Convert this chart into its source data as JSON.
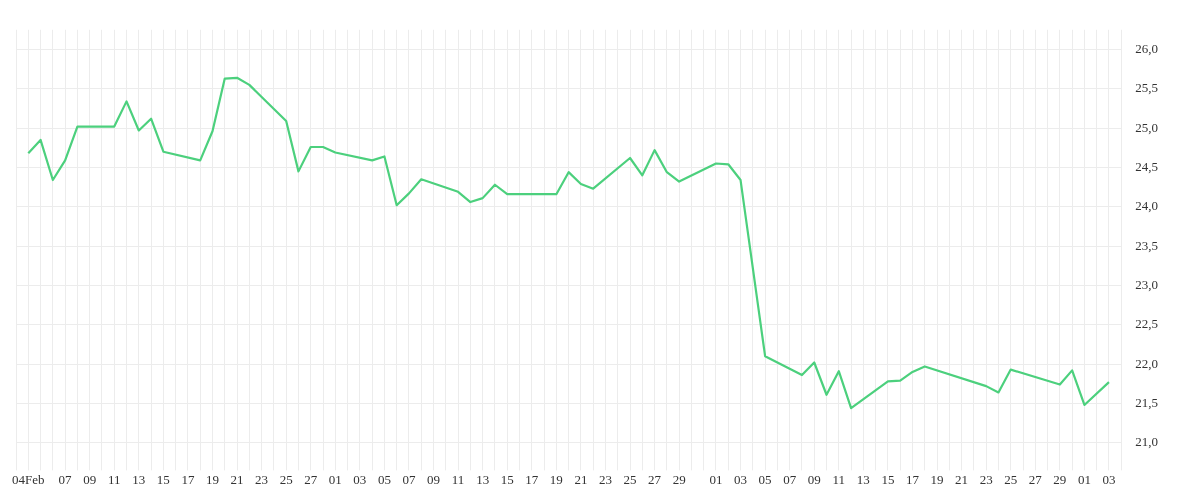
{
  "chart_data": {
    "type": "line",
    "legend": false,
    "grid": true,
    "marker": "none",
    "line_style": "solid",
    "x": [
      "--02-04",
      "--02-05",
      "--02-06",
      "--02-07",
      "--02-08",
      "--02-11",
      "--02-12",
      "--02-13",
      "--02-14",
      "--02-15",
      "--02-18",
      "--02-19",
      "--02-20",
      "--02-21",
      "--02-22",
      "--02-25",
      "--02-26",
      "--02-27",
      "--02-28",
      "--03-01",
      "--03-04",
      "--03-05",
      "--03-06",
      "--03-07",
      "--03-08",
      "--03-11",
      "--03-12",
      "--03-13",
      "--03-14",
      "--03-15",
      "--03-19",
      "--03-20",
      "--03-21",
      "--03-22",
      "--03-25",
      "--03-26",
      "--03-27",
      "--03-28",
      "--03-29",
      "--04-01",
      "--04-02",
      "--04-03",
      "--04-05",
      "--04-08",
      "--04-09",
      "--04-10",
      "--04-11",
      "--04-12",
      "--04-15",
      "--04-16",
      "--04-17",
      "--04-18",
      "--04-23",
      "--04-24",
      "--04-25",
      "--04-29",
      "--04-30",
      "--05-01",
      "--05-03"
    ],
    "series": [
      {
        "color": "#4cd07d",
        "values": [
          24.68,
          24.85,
          24.34,
          24.59,
          25.02,
          25.02,
          25.34,
          24.97,
          25.12,
          24.7,
          24.59,
          24.96,
          25.63,
          25.64,
          25.55,
          25.09,
          24.45,
          24.76,
          24.76,
          24.69,
          24.59,
          24.64,
          24.02,
          24.17,
          24.35,
          24.19,
          24.06,
          24.11,
          24.28,
          24.16,
          24.16,
          24.44,
          24.29,
          24.23,
          24.62,
          24.4,
          24.72,
          24.44,
          24.32,
          24.55,
          24.54,
          24.34,
          22.1,
          21.86,
          22.02,
          21.61,
          21.91,
          21.44,
          21.78,
          21.79,
          21.9,
          21.97,
          21.72,
          21.64,
          21.93,
          21.74,
          21.92,
          21.48,
          21.77
        ]
      }
    ],
    "xlim": [
      "--02-03",
      "--05-04"
    ],
    "xticks": [
      {
        "value": "--02-03",
        "label": null
      },
      {
        "value": "--02-04",
        "label": "04Feb"
      },
      {
        "value": "--02-05",
        "label": null
      },
      {
        "value": "--02-06",
        "label": null
      },
      {
        "value": "--02-07",
        "label": "07"
      },
      {
        "value": "--02-08",
        "label": null
      },
      {
        "value": "--02-09",
        "label": "09"
      },
      {
        "value": "--02-10",
        "label": null
      },
      {
        "value": "--02-11",
        "label": "11"
      },
      {
        "value": "--02-12",
        "label": null
      },
      {
        "value": "--02-13",
        "label": "13"
      },
      {
        "value": "--02-14",
        "label": null
      },
      {
        "value": "--02-15",
        "label": "15"
      },
      {
        "value": "--02-16",
        "label": null
      },
      {
        "value": "--02-17",
        "label": "17"
      },
      {
        "value": "--02-18",
        "label": null
      },
      {
        "value": "--02-19",
        "label": "19"
      },
      {
        "value": "--02-20",
        "label": null
      },
      {
        "value": "--02-21",
        "label": "21"
      },
      {
        "value": "--02-22",
        "label": null
      },
      {
        "value": "--02-23",
        "label": "23"
      },
      {
        "value": "--02-24",
        "label": null
      },
      {
        "value": "--02-25",
        "label": "25"
      },
      {
        "value": "--02-26",
        "label": null
      },
      {
        "value": "--02-27",
        "label": "27"
      },
      {
        "value": "--02-28",
        "label": null
      },
      {
        "value": "--03-01",
        "label": "01"
      },
      {
        "value": "--03-02",
        "label": null
      },
      {
        "value": "--03-03",
        "label": "03"
      },
      {
        "value": "--03-04",
        "label": null
      },
      {
        "value": "--03-05",
        "label": "05"
      },
      {
        "value": "--03-06",
        "label": null
      },
      {
        "value": "--03-07",
        "label": "07"
      },
      {
        "value": "--03-08",
        "label": null
      },
      {
        "value": "--03-09",
        "label": "09"
      },
      {
        "value": "--03-10",
        "label": null
      },
      {
        "value": "--03-11",
        "label": "11"
      },
      {
        "value": "--03-12",
        "label": null
      },
      {
        "value": "--03-13",
        "label": "13"
      },
      {
        "value": "--03-14",
        "label": null
      },
      {
        "value": "--03-15",
        "label": "15"
      },
      {
        "value": "--03-16",
        "label": null
      },
      {
        "value": "--03-17",
        "label": "17"
      },
      {
        "value": "--03-18",
        "label": null
      },
      {
        "value": "--03-19",
        "label": "19"
      },
      {
        "value": "--03-20",
        "label": null
      },
      {
        "value": "--03-21",
        "label": "21"
      },
      {
        "value": "--03-22",
        "label": null
      },
      {
        "value": "--03-23",
        "label": "23"
      },
      {
        "value": "--03-24",
        "label": null
      },
      {
        "value": "--03-25",
        "label": "25"
      },
      {
        "value": "--03-26",
        "label": null
      },
      {
        "value": "--03-27",
        "label": "27"
      },
      {
        "value": "--03-28",
        "label": null
      },
      {
        "value": "--03-29",
        "label": "29"
      },
      {
        "value": "--03-30",
        "label": null
      },
      {
        "value": "--03-31",
        "label": null
      },
      {
        "value": "--04-01",
        "label": "01"
      },
      {
        "value": "--04-02",
        "label": null
      },
      {
        "value": "--04-03",
        "label": "03"
      },
      {
        "value": "--04-04",
        "label": null
      },
      {
        "value": "--04-05",
        "label": "05"
      },
      {
        "value": "--04-06",
        "label": null
      },
      {
        "value": "--04-07",
        "label": "07"
      },
      {
        "value": "--04-08",
        "label": null
      },
      {
        "value": "--04-09",
        "label": "09"
      },
      {
        "value": "--04-10",
        "label": null
      },
      {
        "value": "--04-11",
        "label": "11"
      },
      {
        "value": "--04-12",
        "label": null
      },
      {
        "value": "--04-13",
        "label": "13"
      },
      {
        "value": "--04-14",
        "label": null
      },
      {
        "value": "--04-15",
        "label": "15"
      },
      {
        "value": "--04-16",
        "label": null
      },
      {
        "value": "--04-17",
        "label": "17"
      },
      {
        "value": "--04-18",
        "label": null
      },
      {
        "value": "--04-19",
        "label": "19"
      },
      {
        "value": "--04-20",
        "label": null
      },
      {
        "value": "--04-21",
        "label": "21"
      },
      {
        "value": "--04-22",
        "label": null
      },
      {
        "value": "--04-23",
        "label": "23"
      },
      {
        "value": "--04-24",
        "label": null
      },
      {
        "value": "--04-25",
        "label": "25"
      },
      {
        "value": "--04-26",
        "label": null
      },
      {
        "value": "--04-27",
        "label": "27"
      },
      {
        "value": "--04-28",
        "label": null
      },
      {
        "value": "--04-29",
        "label": "29"
      },
      {
        "value": "--04-30",
        "label": null
      },
      {
        "value": "--05-01",
        "label": "01"
      },
      {
        "value": "--05-02",
        "label": null
      },
      {
        "value": "--05-03",
        "label": "03"
      },
      {
        "value": "--05-04",
        "label": null
      }
    ],
    "ylim": [
      20.75,
      26.25
    ],
    "yticks": [
      {
        "value": 21,
        "label": "21,0"
      },
      {
        "value": 21.5,
        "label": "21,5"
      },
      {
        "value": 22,
        "label": "22,0"
      },
      {
        "value": 22.5,
        "label": "22,5"
      },
      {
        "value": 23,
        "label": "23,0"
      },
      {
        "value": 23.5,
        "label": "23,5"
      },
      {
        "value": 24,
        "label": "24,0"
      },
      {
        "value": 24.5,
        "label": "24,5"
      },
      {
        "value": 25,
        "label": "25,0"
      },
      {
        "value": 25.5,
        "label": "25,5"
      },
      {
        "value": 26,
        "label": "26,0"
      }
    ]
  }
}
